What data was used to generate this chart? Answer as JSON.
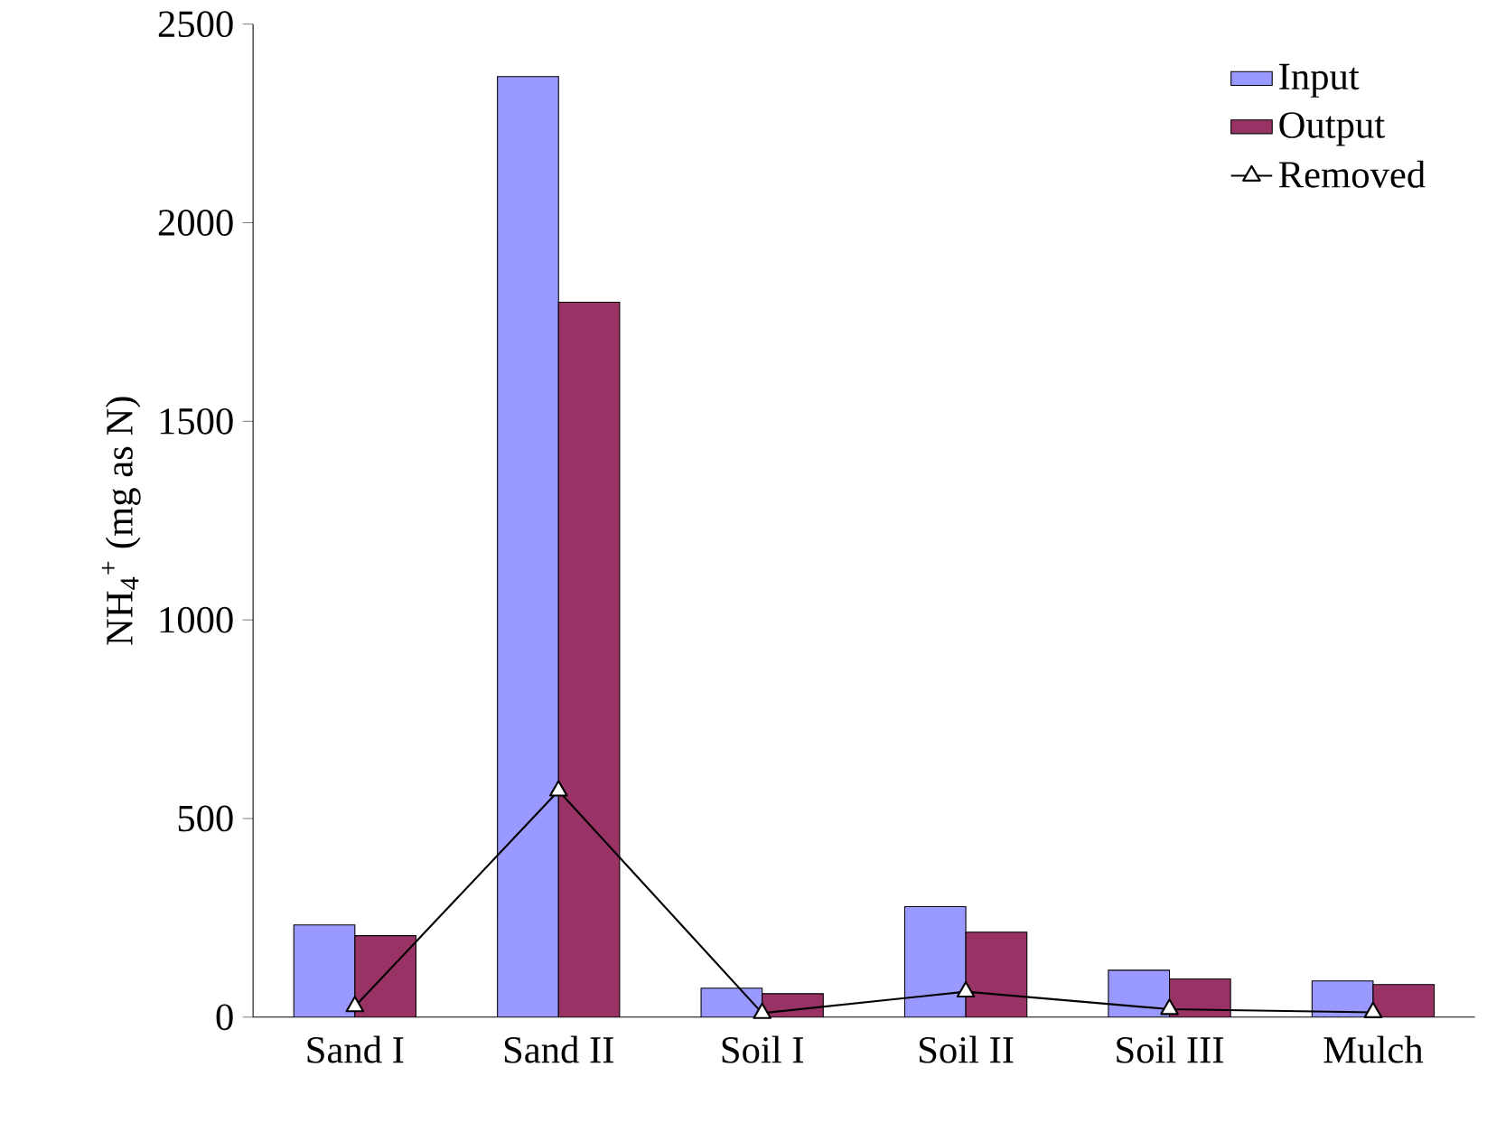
{
  "chart_data": {
    "type": "bar",
    "ylabel": "NH$_{4}$$^{+}$ (mg as N)",
    "categories": [
      "Sand I",
      "Sand II",
      "Soil I",
      "Soil II",
      "Soil III",
      "Mulch"
    ],
    "series": [
      {
        "name": "Input",
        "color": "#9999ff",
        "values": [
          232,
          2368,
          73,
          278,
          118,
          91
        ]
      },
      {
        "name": "Output",
        "color": "#993366",
        "values": [
          205,
          1800,
          59,
          214,
          96,
          82
        ]
      },
      {
        "name": "Removed",
        "type": "line",
        "color": "#000000",
        "marker": "triangle",
        "values": [
          27,
          570,
          10,
          64,
          20,
          12
        ]
      }
    ],
    "ylim": [
      0,
      2500
    ],
    "yticks": [
      0,
      500,
      1000,
      1500,
      2000,
      2500
    ],
    "legend": "top right",
    "grid": false
  }
}
